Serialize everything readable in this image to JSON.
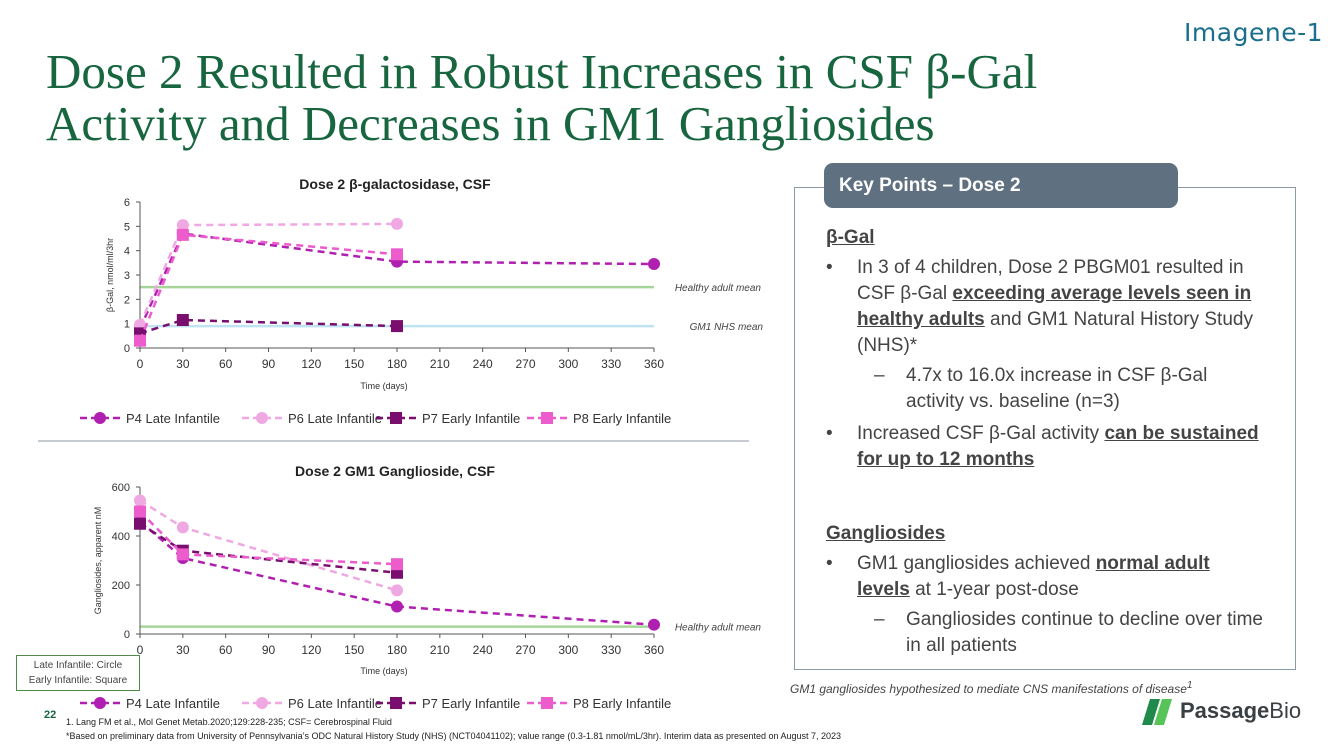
{
  "header": {
    "brand": "Imagene-1",
    "title_line1": "Dose 2 Resulted in Robust Increases in CSF β-Gal",
    "title_line2": "Activity and Decreases in GM1 Gangliosides"
  },
  "chart_data": [
    {
      "type": "line",
      "title": "Dose 2 β-galactosidase, CSF",
      "xlabel": "Time (days)",
      "ylabel": "β-Gal, nmol/ml/3hr",
      "xlim": [
        0,
        360
      ],
      "ylim": [
        0,
        6
      ],
      "x_ticks": [
        "0",
        "30",
        "60",
        "90",
        "120",
        "150",
        "180",
        "210",
        "240",
        "270",
        "300",
        "330",
        "360"
      ],
      "y_ticks": [
        "0",
        "1",
        "2",
        "3",
        "4",
        "5",
        "6"
      ],
      "series": [
        {
          "name": "P4 Late Infantile",
          "marker": "circle",
          "color": "#b020b0",
          "x": [
            0,
            30,
            180,
            360
          ],
          "y": [
            0.8,
            4.7,
            3.55,
            3.45
          ]
        },
        {
          "name": "P6 Late Infantile",
          "marker": "circle",
          "color": "#f0a8e2",
          "x": [
            0,
            30,
            180
          ],
          "y": [
            0.95,
            5.05,
            5.1
          ]
        },
        {
          "name": "P7 Early Infantile",
          "marker": "square",
          "color": "#7a0e6e",
          "x": [
            0,
            30,
            180
          ],
          "y": [
            0.6,
            1.15,
            0.9
          ]
        },
        {
          "name": "P8 Early Infantile",
          "marker": "square",
          "color": "#ec5ccc",
          "x": [
            0,
            30,
            180
          ],
          "y": [
            0.3,
            4.65,
            3.85
          ]
        }
      ],
      "reference_lines": [
        {
          "label": "Healthy adult mean",
          "y": 2.5,
          "color": "#a6d59a"
        },
        {
          "label": "GM1 NHS mean",
          "y": 0.9,
          "color": "#bfe3f3"
        }
      ]
    },
    {
      "type": "line",
      "title": "Dose 2 GM1 Ganglioside, CSF",
      "xlabel": "Time (days)",
      "ylabel": "Gangliosides, apparent nM",
      "xlim": [
        0,
        360
      ],
      "ylim": [
        0,
        600
      ],
      "x_ticks": [
        "0",
        "30",
        "60",
        "90",
        "120",
        "150",
        "180",
        "210",
        "240",
        "270",
        "300",
        "330",
        "360"
      ],
      "y_ticks": [
        "0",
        "200",
        "400",
        "600"
      ],
      "series": [
        {
          "name": "P4 Late Infantile",
          "marker": "circle",
          "color": "#b020b0",
          "x": [
            0,
            30,
            180,
            360
          ],
          "y": [
            460,
            310,
            112,
            38
          ]
        },
        {
          "name": "P6 Late Infantile",
          "marker": "circle",
          "color": "#f0a8e2",
          "x": [
            0,
            30,
            180
          ],
          "y": [
            545,
            435,
            178
          ]
        },
        {
          "name": "P7 Early Infantile",
          "marker": "square",
          "color": "#7a0e6e",
          "x": [
            0,
            30,
            180
          ],
          "y": [
            450,
            340,
            250
          ]
        },
        {
          "name": "P8 Early Infantile",
          "marker": "square",
          "color": "#ec5ccc",
          "x": [
            0,
            30,
            180
          ],
          "y": [
            500,
            325,
            285
          ]
        }
      ],
      "reference_lines": [
        {
          "label": "Healthy adult mean",
          "y": 30,
          "color": "#a6d59a"
        }
      ]
    }
  ],
  "marker_legend": {
    "line1": "Late Infantile: Circle",
    "line2": "Early Infantile: Square"
  },
  "key_points": {
    "header": "Key Points – Dose 2",
    "bgal": {
      "heading": "β-Gal",
      "b1_pre": "In 3 of 4 children, Dose 2 PBGM01 resulted in CSF β-Gal ",
      "b1_em": "exceeding average levels seen in healthy adults",
      "b1_post": " and GM1 Natural History Study (NHS)*",
      "b1_sub": "4.7x to 16.0x increase in CSF β-Gal activity vs. baseline (n=3)",
      "b2_pre": "Increased CSF β-Gal activity ",
      "b2_em": "can be sustained for up to 12 months"
    },
    "ganglio": {
      "heading": "Gangliosides",
      "b1_pre": "GM1 gangliosides achieved ",
      "b1_em": "normal adult levels",
      "b1_post": " at 1-year post-dose",
      "b1_sub": "Gangliosides continue to decline over time in all patients"
    }
  },
  "footer": {
    "note": "GM1 gangliosides hypothesized to mediate CNS manifestations of disease",
    "note_sup": "1",
    "page_number": "22",
    "ref1": "1. Lang FM et al., Mol Genet Metab.2020;129:228-235; CSF= Cerebrospinal Fluid",
    "ref2": "*Based on preliminary data from University of Pennsylvania’s ODC  Natural History Study (NHS) (NCT04041102); value range (0.3-1.81 nmol/mL/3hr). Interim data as presented on August 7, 2023",
    "logo_bold": "Passage",
    "logo_rest": "Bio"
  },
  "colors": {
    "title_green": "#17663f",
    "header_slate": "#5f7081",
    "brand_teal": "#1a6f8c"
  }
}
